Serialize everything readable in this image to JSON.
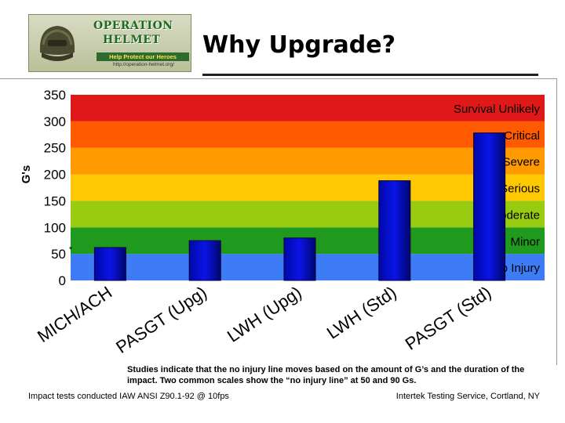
{
  "logo": {
    "line1": "OPERATION",
    "line2": "HELMET",
    "tagline": "Help Protect our Heroes",
    "url": "http://operation-helmet.org/"
  },
  "title": "Why Upgrade?",
  "chart_data": {
    "type": "bar",
    "ylabel": "G's",
    "ylim": [
      0,
      350
    ],
    "yticks": [
      0,
      50,
      100,
      150,
      200,
      250,
      300,
      350
    ],
    "categories": [
      "MICH/ACH",
      "PASGT (Upg)",
      "LWH (Upg)",
      "LWH (Std)",
      "PASGT (Std)"
    ],
    "values": [
      62,
      75,
      80,
      188,
      278
    ],
    "bar_color": "#0a14e6",
    "bands": [
      {
        "label": "No Injury",
        "from": 0,
        "to": 50,
        "color": "#3d7cf5"
      },
      {
        "label": "Minor",
        "from": 50,
        "to": 100,
        "color": "#1f9a1f"
      },
      {
        "label": "Moderate",
        "from": 100,
        "to": 150,
        "color": "#99cc10"
      },
      {
        "label": "Serious",
        "from": 150,
        "to": 200,
        "color": "#ffc800"
      },
      {
        "label": "Severe",
        "from": 200,
        "to": 250,
        "color": "#ff9a00"
      },
      {
        "label": "Critical",
        "from": 250,
        "to": 300,
        "color": "#ff5a00"
      },
      {
        "label": "Survival Unlikely",
        "from": 300,
        "to": 350,
        "color": "#e01818"
      }
    ],
    "annotation": "*"
  },
  "footnote": "Studies indicate that the no injury line moves based on the amount of G’s and the duration of the impact.  Two common scales show the “no injury line” at 50 and 90 Gs.",
  "footer_left": "Impact tests conducted IAW ANSI Z90.1-92 @ 10fps",
  "footer_right": "Intertek Testing Service, Cortland, NY"
}
